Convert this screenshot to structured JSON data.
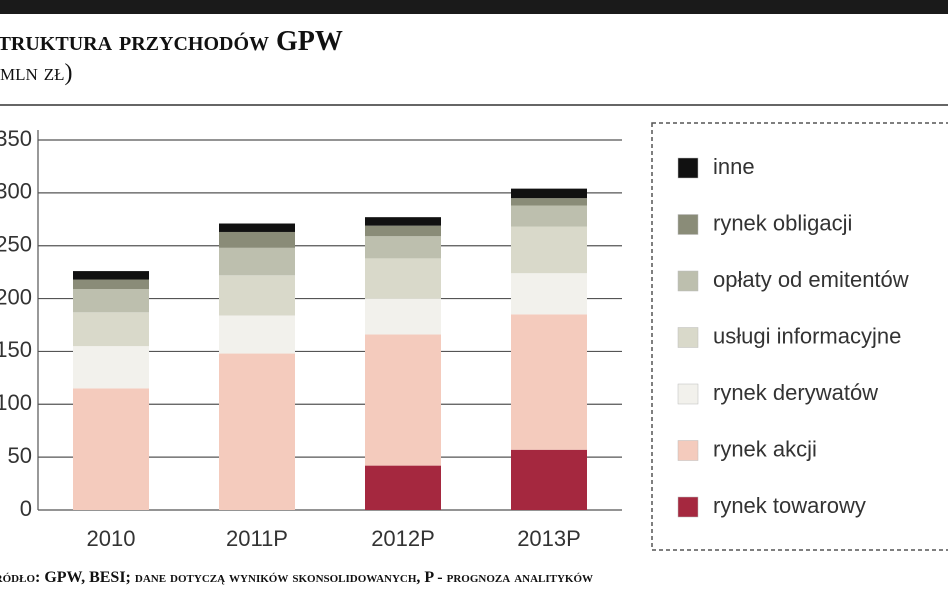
{
  "chart_data": {
    "type": "stacked_bar",
    "title": "Struktura przychodów GPW",
    "subtitle": "(mln zł)",
    "source": "Źródło: GPW, BESI; dane dotyczą wyników skonsolidowanych, P - prognoza analityków",
    "categories": [
      "2010",
      "2011P",
      "2012P",
      "2013P"
    ],
    "series": [
      {
        "name": "rynek towarowy",
        "color": "#a5283f",
        "values": [
          0,
          0,
          42,
          57
        ]
      },
      {
        "name": "rynek akcji",
        "color": "#f4cbbd",
        "values": [
          115,
          148,
          124,
          128
        ]
      },
      {
        "name": "rynek derywatów",
        "color": "#f2f1ec",
        "values": [
          40,
          36,
          34,
          39
        ]
      },
      {
        "name": "usługi informacyjne",
        "color": "#d9d9ca",
        "values": [
          32,
          38,
          38,
          44
        ]
      },
      {
        "name": "opłaty od emitentów",
        "color": "#bdbfae",
        "values": [
          22,
          26,
          21,
          20
        ]
      },
      {
        "name": "rynek obligacji",
        "color": "#8a8c78",
        "values": [
          9,
          15,
          10,
          7
        ]
      },
      {
        "name": "inne",
        "color": "#111111",
        "values": [
          8,
          8,
          8,
          9
        ]
      }
    ],
    "ylim": [
      0,
      350
    ],
    "yticks": [
      0,
      50,
      100,
      150,
      200,
      250,
      300,
      350
    ],
    "grid": true
  }
}
